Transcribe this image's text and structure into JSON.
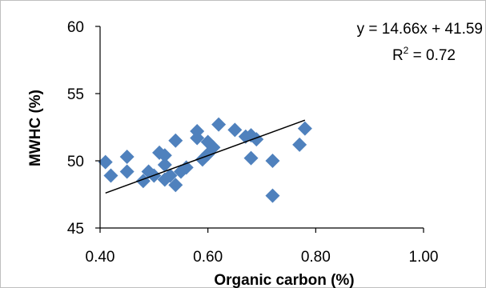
{
  "chart_data": {
    "type": "scatter",
    "title": "",
    "xlabel": "Organic carbon (%)",
    "ylabel": "MWHC (%)",
    "xlim": [
      0.4,
      1.0
    ],
    "ylim": [
      45,
      60
    ],
    "xticks": [
      "0.40",
      "0.60",
      "0.80",
      "1.00"
    ],
    "yticks": [
      "45",
      "50",
      "55",
      "60"
    ],
    "xtick_values": [
      0.4,
      0.6,
      0.8,
      1.0
    ],
    "ytick_values": [
      45,
      50,
      55,
      60
    ],
    "grid": false,
    "legend": "none",
    "marker": "diamond",
    "marker_color": "#4F81BD",
    "trendline_color": "#000000",
    "series": [
      {
        "points": [
          [
            0.41,
            49.9
          ],
          [
            0.42,
            48.9
          ],
          [
            0.45,
            50.3
          ],
          [
            0.45,
            49.2
          ],
          [
            0.48,
            48.5
          ],
          [
            0.49,
            49.2
          ],
          [
            0.5,
            48.9
          ],
          [
            0.51,
            50.6
          ],
          [
            0.52,
            50.4
          ],
          [
            0.52,
            49.7
          ],
          [
            0.52,
            48.6
          ],
          [
            0.53,
            48.9
          ],
          [
            0.54,
            51.5
          ],
          [
            0.54,
            48.2
          ],
          [
            0.55,
            49.2
          ],
          [
            0.56,
            49.5
          ],
          [
            0.58,
            51.7
          ],
          [
            0.58,
            52.2
          ],
          [
            0.59,
            50.1
          ],
          [
            0.6,
            51.4
          ],
          [
            0.6,
            50.5
          ],
          [
            0.61,
            51.0
          ],
          [
            0.62,
            52.7
          ],
          [
            0.65,
            52.3
          ],
          [
            0.67,
            51.8
          ],
          [
            0.68,
            51.9
          ],
          [
            0.68,
            50.2
          ],
          [
            0.69,
            51.6
          ],
          [
            0.72,
            50.0
          ],
          [
            0.72,
            47.4
          ],
          [
            0.77,
            51.2
          ],
          [
            0.78,
            52.4
          ]
        ]
      }
    ],
    "trendline": {
      "slope": 14.66,
      "intercept": 41.59,
      "x_range": [
        0.41,
        0.78
      ]
    },
    "annotations": {
      "equation": "y = 14.66x + 41.59",
      "r2_label": "R",
      "r2_sup": "2",
      "r2_value": " = 0.72"
    }
  }
}
